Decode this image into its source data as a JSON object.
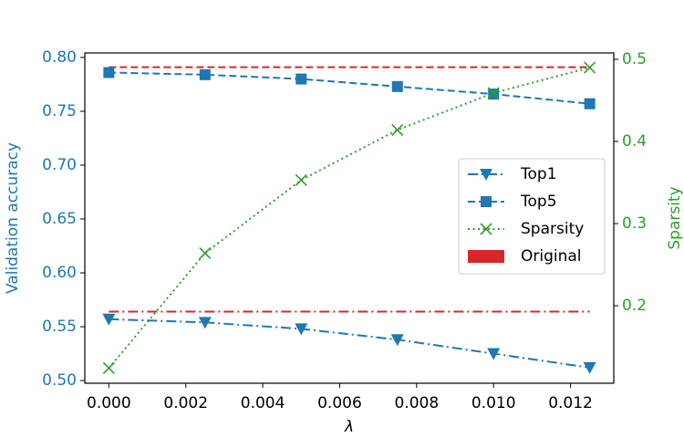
{
  "chart_data": {
    "type": "line",
    "x_label": "λ",
    "y_label": "Validation accuracy",
    "y2_label": "Sparsity",
    "y_label_color": "#1f77b4",
    "y2_label_color": "#2ca02c",
    "x": [
      0,
      0.0025,
      0.005,
      0.0075,
      0.01,
      0.0125
    ],
    "series": [
      {
        "name": "Top1",
        "color": "#1f77b4",
        "marker": "triangle-down",
        "linestyle": "dashdot",
        "values": [
          0.557,
          0.554,
          0.548,
          0.538,
          0.525,
          0.512
        ]
      },
      {
        "name": "Top5",
        "color": "#1f77b4",
        "marker": "square",
        "linestyle": "dashed",
        "values": [
          0.786,
          0.784,
          0.78,
          0.773,
          0.766,
          0.757
        ]
      },
      {
        "name": "Sparsity",
        "color": "#2ca02c",
        "marker": "x",
        "linestyle": "dotted",
        "axis": "y2",
        "values": [
          0.124,
          0.264,
          0.353,
          0.414,
          0.459,
          0.49
        ]
      }
    ],
    "reference_lines": {
      "name": "Original",
      "color": "#d62728",
      "top1": 0.564,
      "top5": 0.791
    },
    "xlim": [
      -0.000625,
      0.013125
    ],
    "xticks": [
      {
        "value": 0,
        "label": "0.000"
      },
      {
        "value": 0.002,
        "label": "0.002"
      },
      {
        "value": 0.004,
        "label": "0.004"
      },
      {
        "value": 0.006,
        "label": "0.006"
      },
      {
        "value": 0.008,
        "label": "0.008"
      },
      {
        "value": 0.01,
        "label": "0.010"
      },
      {
        "value": 0.012,
        "label": "0.012"
      }
    ],
    "ylim": [
      0.4975,
      0.8042
    ],
    "yticks": [
      {
        "value": 0.5,
        "label": "0.50"
      },
      0.55,
      {
        "value": 0.6,
        "label": "0.60"
      },
      0.65,
      {
        "value": 0.7,
        "label": "0.70"
      },
      0.75,
      {
        "value": 0.8,
        "label": "0.80"
      }
    ],
    "y2lim": [
      0.1056,
      0.5078
    ],
    "y2ticks": [
      0.2,
      0.3,
      0.4,
      0.5
    ],
    "legend": "center-right"
  }
}
